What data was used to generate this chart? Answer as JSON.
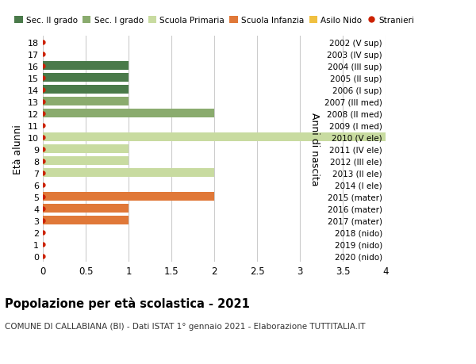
{
  "title": "Popolazione per età scolastica - 2021",
  "subtitle": "COMUNE DI CALLABIANA (BI) - Dati ISTAT 1° gennaio 2021 - Elaborazione TUTTITALIA.IT",
  "ylabel_left": "Età alunni",
  "ylabel_right": "Anni di nascita",
  "xlim": [
    0,
    4.0
  ],
  "xticks": [
    0,
    0.5,
    1.0,
    1.5,
    2.0,
    2.5,
    3.0,
    3.5,
    4.0
  ],
  "ages": [
    0,
    1,
    2,
    3,
    4,
    5,
    6,
    7,
    8,
    9,
    10,
    11,
    12,
    13,
    14,
    15,
    16,
    17,
    18
  ],
  "right_labels": [
    "2020 (nido)",
    "2019 (nido)",
    "2018 (nido)",
    "2017 (mater)",
    "2016 (mater)",
    "2015 (mater)",
    "2014 (I ele)",
    "2013 (II ele)",
    "2012 (III ele)",
    "2011 (IV ele)",
    "2010 (V ele)",
    "2009 (I med)",
    "2008 (II med)",
    "2007 (III med)",
    "2006 (I sup)",
    "2005 (II sup)",
    "2004 (III sup)",
    "2003 (IV sup)",
    "2002 (V sup)"
  ],
  "bar_values": [
    0,
    0,
    0,
    1,
    1,
    2,
    0,
    2,
    1,
    1,
    4,
    0,
    2,
    1,
    1,
    1,
    1,
    0,
    0
  ],
  "bar_colors": [
    "#f0c040",
    "#f0c040",
    "#f0c040",
    "#e07838",
    "#e07838",
    "#e07838",
    "#c8dba0",
    "#c8dba0",
    "#c8dba0",
    "#c8dba0",
    "#c8dba0",
    "#8aab6e",
    "#8aab6e",
    "#8aab6e",
    "#4a7a4a",
    "#4a7a4a",
    "#4a7a4a",
    "#4a7a4a",
    "#4a7a4a"
  ],
  "dot_color": "#cc2200",
  "legend_labels": [
    "Sec. II grado",
    "Sec. I grado",
    "Scuola Primaria",
    "Scuola Infanzia",
    "Asilo Nido",
    "Stranieri"
  ],
  "legend_colors": [
    "#4a7a4a",
    "#8aab6e",
    "#c8dba0",
    "#e07838",
    "#f0c040",
    "#cc2200"
  ],
  "legend_marker": [
    "s",
    "s",
    "s",
    "s",
    "s",
    "o"
  ],
  "background_color": "#ffffff",
  "grid_color": "#cccccc"
}
